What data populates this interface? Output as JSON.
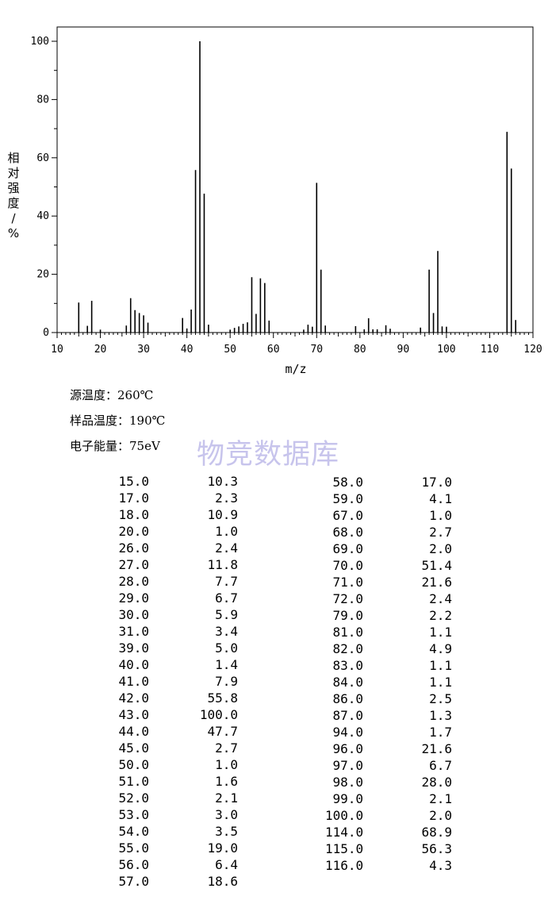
{
  "chart_data": {
    "type": "bar",
    "xlabel": "m/z",
    "ylabel": "相对强度/%",
    "xlim": [
      10,
      120
    ],
    "ylim": [
      0,
      100
    ],
    "x_ticks": [
      "10",
      "20",
      "30",
      "40",
      "50",
      "60",
      "70",
      "80",
      "90",
      "100",
      "110",
      "120"
    ],
    "y_ticks": [
      "0",
      "20",
      "40",
      "60",
      "80",
      "100"
    ],
    "peaks": [
      {
        "mz": 15.0,
        "intensity": 10.3
      },
      {
        "mz": 17.0,
        "intensity": 2.3
      },
      {
        "mz": 18.0,
        "intensity": 10.9
      },
      {
        "mz": 20.0,
        "intensity": 1.0
      },
      {
        "mz": 26.0,
        "intensity": 2.4
      },
      {
        "mz": 27.0,
        "intensity": 11.8
      },
      {
        "mz": 28.0,
        "intensity": 7.7
      },
      {
        "mz": 29.0,
        "intensity": 6.7
      },
      {
        "mz": 30.0,
        "intensity": 5.9
      },
      {
        "mz": 31.0,
        "intensity": 3.4
      },
      {
        "mz": 39.0,
        "intensity": 5.0
      },
      {
        "mz": 40.0,
        "intensity": 1.4
      },
      {
        "mz": 41.0,
        "intensity": 7.9
      },
      {
        "mz": 42.0,
        "intensity": 55.8
      },
      {
        "mz": 43.0,
        "intensity": 100.0
      },
      {
        "mz": 44.0,
        "intensity": 47.7
      },
      {
        "mz": 45.0,
        "intensity": 2.7
      },
      {
        "mz": 50.0,
        "intensity": 1.0
      },
      {
        "mz": 51.0,
        "intensity": 1.6
      },
      {
        "mz": 52.0,
        "intensity": 2.1
      },
      {
        "mz": 53.0,
        "intensity": 3.0
      },
      {
        "mz": 54.0,
        "intensity": 3.5
      },
      {
        "mz": 55.0,
        "intensity": 19.0
      },
      {
        "mz": 56.0,
        "intensity": 6.4
      },
      {
        "mz": 57.0,
        "intensity": 18.6
      },
      {
        "mz": 58.0,
        "intensity": 17.0
      },
      {
        "mz": 59.0,
        "intensity": 4.1
      },
      {
        "mz": 67.0,
        "intensity": 1.0
      },
      {
        "mz": 68.0,
        "intensity": 2.7
      },
      {
        "mz": 69.0,
        "intensity": 2.0
      },
      {
        "mz": 70.0,
        "intensity": 51.4
      },
      {
        "mz": 71.0,
        "intensity": 21.6
      },
      {
        "mz": 72.0,
        "intensity": 2.4
      },
      {
        "mz": 79.0,
        "intensity": 2.2
      },
      {
        "mz": 81.0,
        "intensity": 1.1
      },
      {
        "mz": 82.0,
        "intensity": 4.9
      },
      {
        "mz": 83.0,
        "intensity": 1.1
      },
      {
        "mz": 84.0,
        "intensity": 1.1
      },
      {
        "mz": 86.0,
        "intensity": 2.5
      },
      {
        "mz": 87.0,
        "intensity": 1.3
      },
      {
        "mz": 94.0,
        "intensity": 1.7
      },
      {
        "mz": 96.0,
        "intensity": 21.6
      },
      {
        "mz": 97.0,
        "intensity": 6.7
      },
      {
        "mz": 98.0,
        "intensity": 28.0
      },
      {
        "mz": 99.0,
        "intensity": 2.1
      },
      {
        "mz": 100.0,
        "intensity": 2.0
      },
      {
        "mz": 114.0,
        "intensity": 68.9
      },
      {
        "mz": 115.0,
        "intensity": 56.3
      },
      {
        "mz": 116.0,
        "intensity": 4.3
      }
    ]
  },
  "conditions": [
    {
      "label": "源温度：",
      "value": "260℃"
    },
    {
      "label": "样品温度：",
      "value": "190℃"
    },
    {
      "label": "电子能量：",
      "value": "75eV"
    }
  ],
  "watermark": "物竞数据库",
  "table": {
    "left": [
      [
        "15.0",
        "10.3"
      ],
      [
        "17.0",
        "2.3"
      ],
      [
        "18.0",
        "10.9"
      ],
      [
        "20.0",
        "1.0"
      ],
      [
        "26.0",
        "2.4"
      ],
      [
        "27.0",
        "11.8"
      ],
      [
        "28.0",
        "7.7"
      ],
      [
        "29.0",
        "6.7"
      ],
      [
        "30.0",
        "5.9"
      ],
      [
        "31.0",
        "3.4"
      ],
      [
        "39.0",
        "5.0"
      ],
      [
        "40.0",
        "1.4"
      ],
      [
        "41.0",
        "7.9"
      ],
      [
        "42.0",
        "55.8"
      ],
      [
        "43.0",
        "100.0"
      ],
      [
        "44.0",
        "47.7"
      ],
      [
        "45.0",
        "2.7"
      ],
      [
        "50.0",
        "1.0"
      ],
      [
        "51.0",
        "1.6"
      ],
      [
        "52.0",
        "2.1"
      ],
      [
        "53.0",
        "3.0"
      ],
      [
        "54.0",
        "3.5"
      ],
      [
        "55.0",
        "19.0"
      ],
      [
        "56.0",
        "6.4"
      ],
      [
        "57.0",
        "18.6"
      ]
    ],
    "right": [
      [
        "58.0",
        "17.0"
      ],
      [
        "59.0",
        "4.1"
      ],
      [
        "67.0",
        "1.0"
      ],
      [
        "68.0",
        "2.7"
      ],
      [
        "69.0",
        "2.0"
      ],
      [
        "70.0",
        "51.4"
      ],
      [
        "71.0",
        "21.6"
      ],
      [
        "72.0",
        "2.4"
      ],
      [
        "79.0",
        "2.2"
      ],
      [
        "81.0",
        "1.1"
      ],
      [
        "82.0",
        "4.9"
      ],
      [
        "83.0",
        "1.1"
      ],
      [
        "84.0",
        "1.1"
      ],
      [
        "86.0",
        "2.5"
      ],
      [
        "87.0",
        "1.3"
      ],
      [
        "94.0",
        "1.7"
      ],
      [
        "96.0",
        "21.6"
      ],
      [
        "97.0",
        "6.7"
      ],
      [
        "98.0",
        "28.0"
      ],
      [
        "99.0",
        "2.1"
      ],
      [
        "100.0",
        "2.0"
      ],
      [
        "114.0",
        "68.9"
      ],
      [
        "115.0",
        "56.3"
      ],
      [
        "116.0",
        "4.3"
      ]
    ]
  }
}
